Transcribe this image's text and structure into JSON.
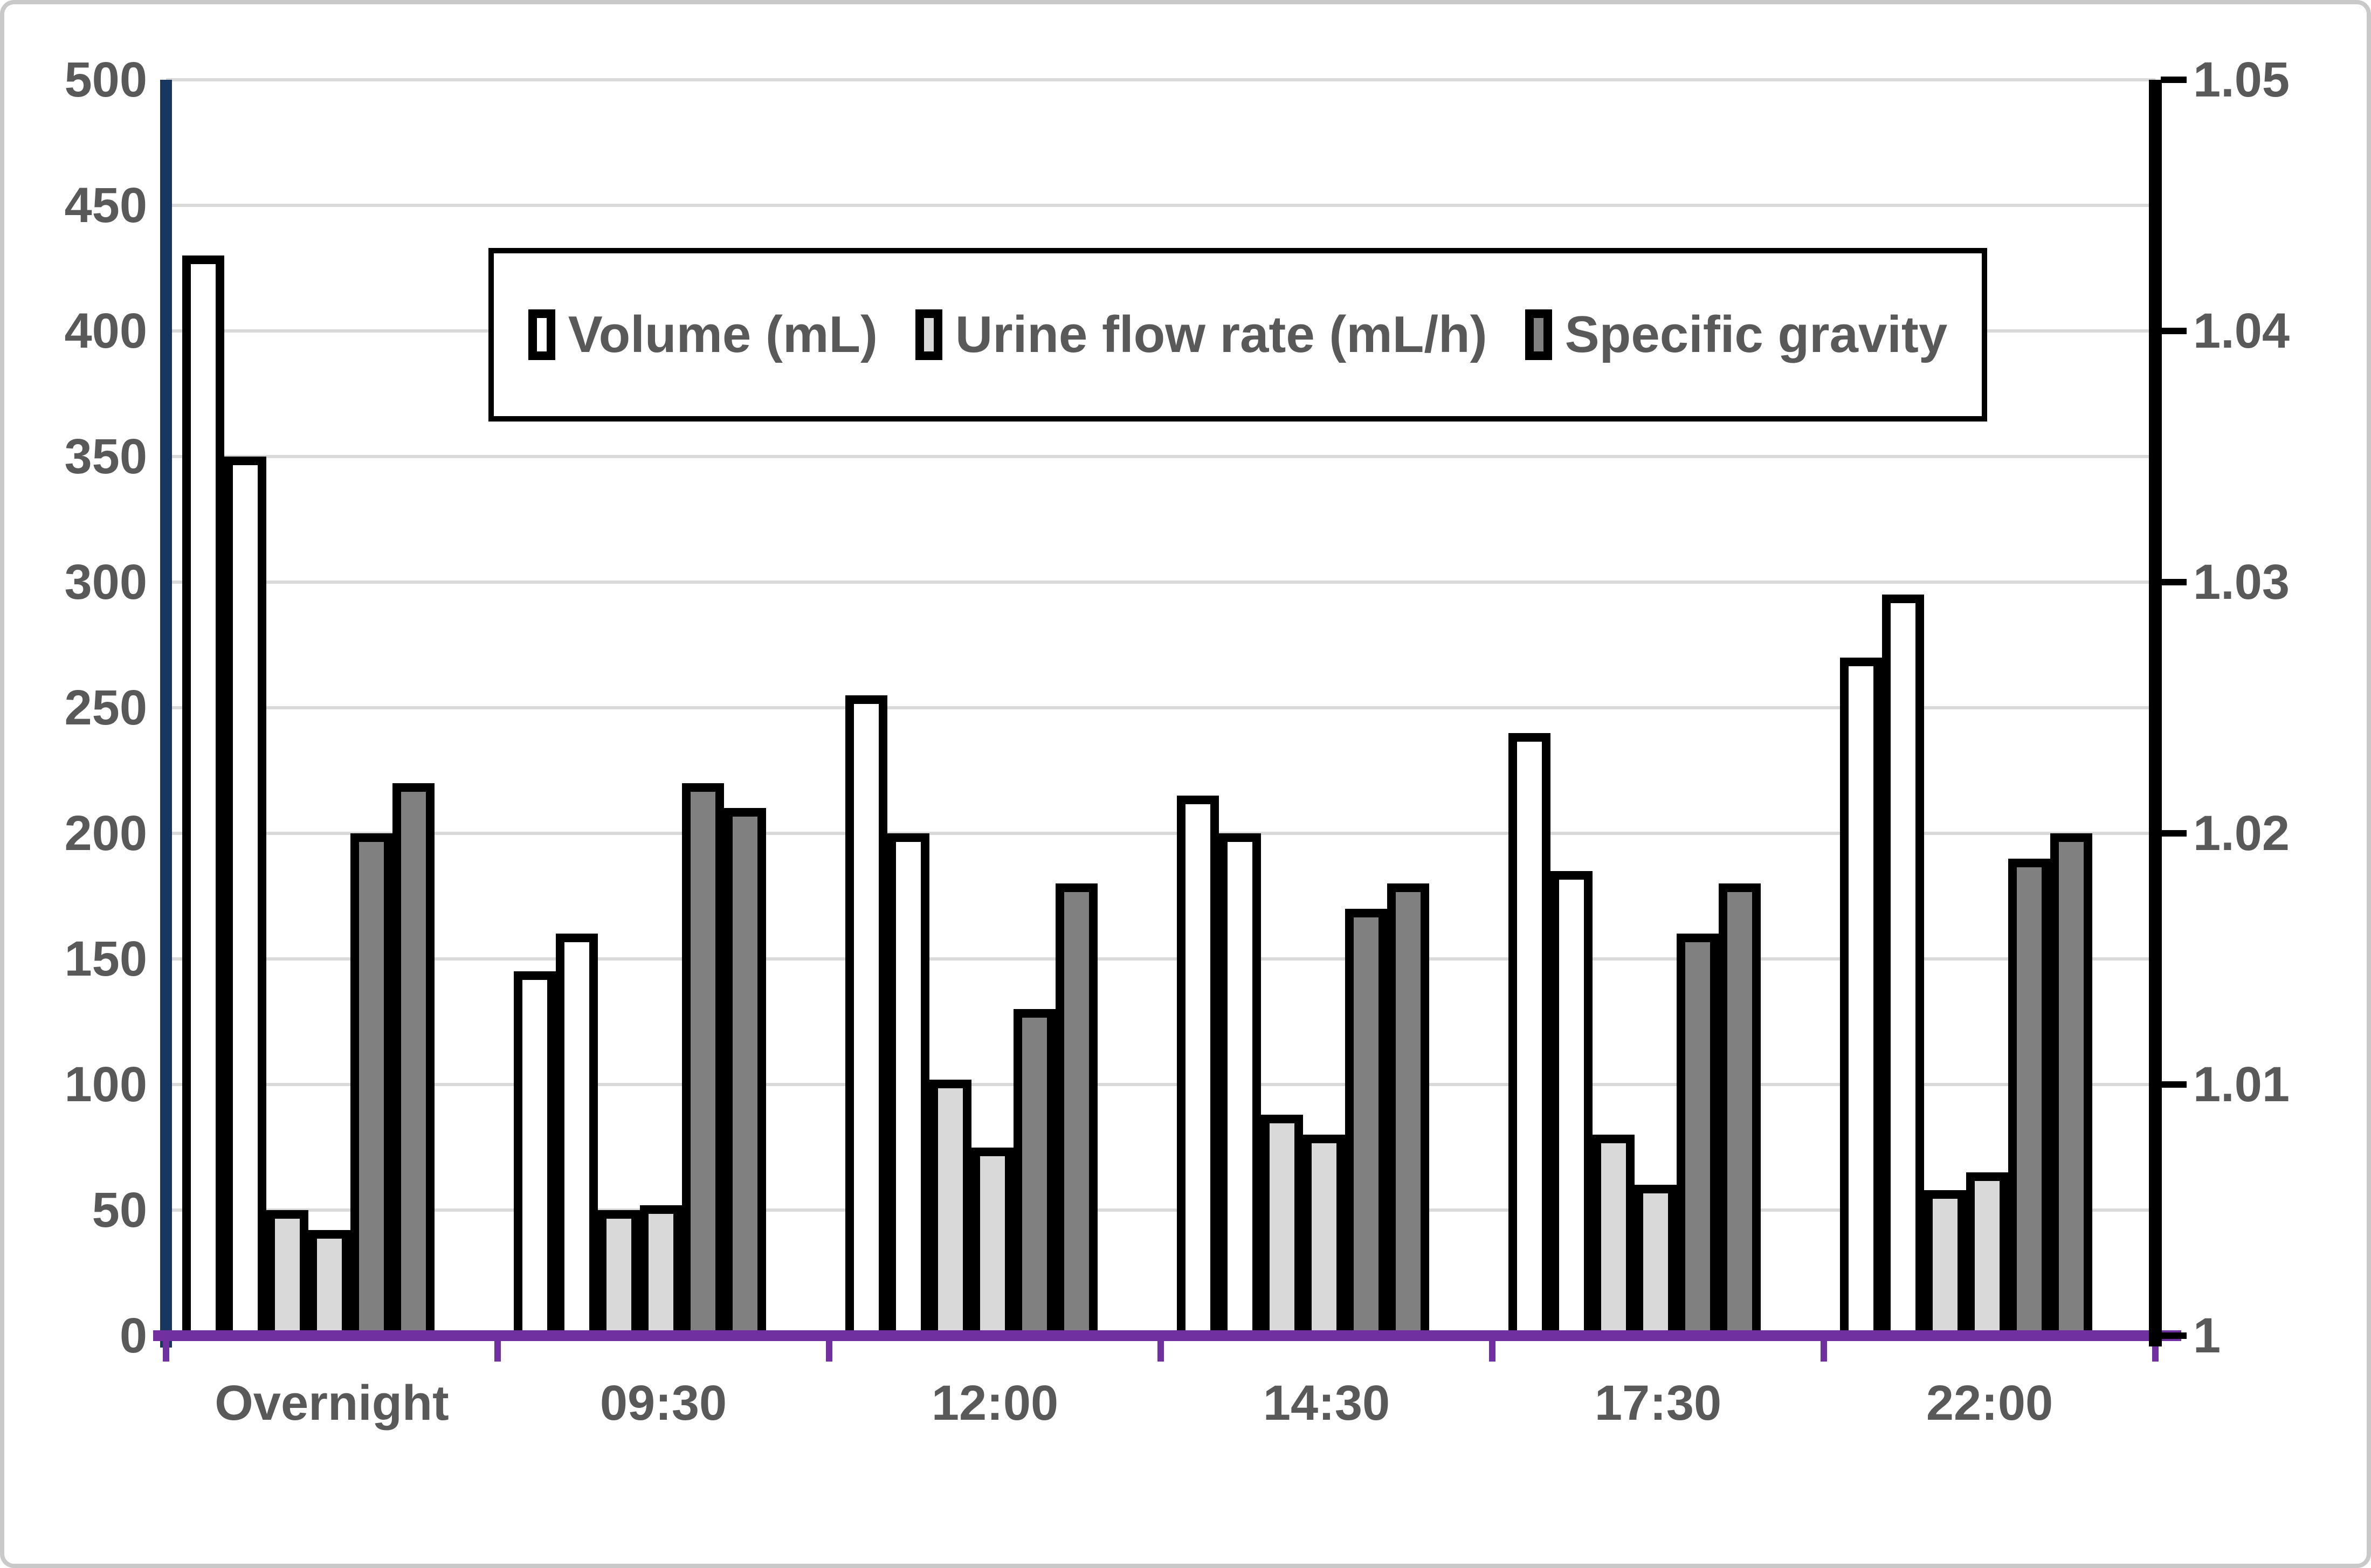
{
  "chart_data": {
    "type": "bar",
    "title": "",
    "categories": [
      "Overnight",
      "09:30",
      "12:00",
      "14:30",
      "17:30",
      "22:00"
    ],
    "bars_per_category_per_series": 2,
    "series": [
      {
        "name": "Volume (mL)",
        "key": "volume",
        "axis": "left",
        "fill": "#FFFFFF",
        "values": [
          [
            430,
            350
          ],
          [
            145,
            160
          ],
          [
            255,
            200
          ],
          [
            215,
            200
          ],
          [
            240,
            185
          ],
          [
            270,
            295
          ]
        ]
      },
      {
        "name": "Urine flow rate (mL/h)",
        "key": "urine-flow-rate",
        "axis": "left",
        "fill": "#D9D9D9",
        "values": [
          [
            50,
            42
          ],
          [
            50,
            52
          ],
          [
            102,
            75
          ],
          [
            88,
            80
          ],
          [
            80,
            60
          ],
          [
            58,
            65
          ]
        ]
      },
      {
        "name": "Specific gravity",
        "key": "specific-gravity",
        "axis": "right",
        "fill": "#808080",
        "values": [
          [
            1.02,
            1.022
          ],
          [
            1.022,
            1.021
          ],
          [
            1.013,
            1.018
          ],
          [
            1.017,
            1.018
          ],
          [
            1.016,
            1.018
          ],
          [
            1.019,
            1.02
          ]
        ]
      }
    ],
    "left_axis": {
      "min": 0,
      "max": 500,
      "step": 50,
      "tick_labels": [
        "500",
        "450",
        "400",
        "350",
        "300",
        "250",
        "200",
        "150",
        "100",
        "50",
        "0"
      ]
    },
    "right_axis": {
      "min": 1,
      "max": 1.05,
      "step": 0.01,
      "tick_labels": [
        "1.05",
        "1.04",
        "1.03",
        "1.02",
        "1.01",
        "1"
      ]
    },
    "grid": true,
    "legend_position": "top-center"
  },
  "colors": {
    "bar_border": "#000000",
    "volume_fill": "#FFFFFF",
    "urine_flow_rate_fill": "#D9D9D9",
    "specific_gravity_fill": "#808080",
    "left_axis_line": "#17375E",
    "bottom_axis_line": "#7030A0",
    "right_axis_line": "#000000",
    "gridline": "#D9D9D9",
    "text": "#595959",
    "frame": "#C9C9C9"
  }
}
